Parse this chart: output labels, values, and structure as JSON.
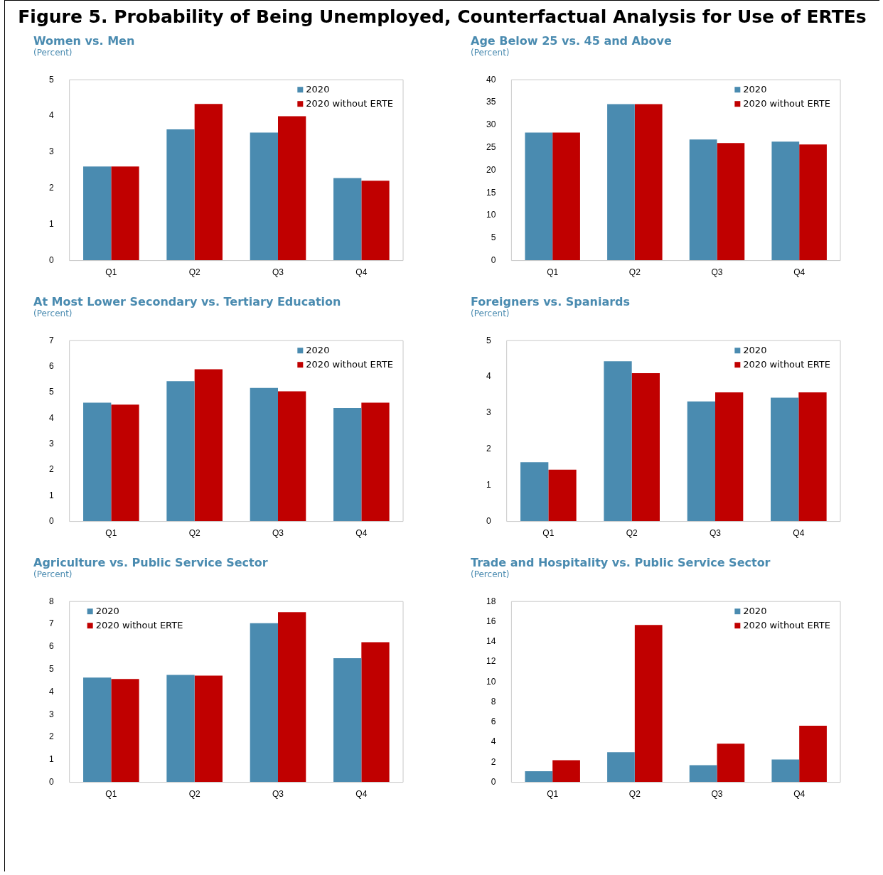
{
  "chart_data": [
    {
      "type": "other",
      "title": "Figure 5. Probability of Being Unemployed, Counterfactual Analysis for Use of ERTEs"
    },
    {
      "type": "bar",
      "title": "Women vs. Men",
      "subtitle": "(Percent)",
      "categories": [
        "Q1",
        "Q2",
        "Q3",
        "Q4"
      ],
      "series": [
        {
          "name": "2020",
          "color": "#4a8bb0",
          "values": [
            2.6,
            3.63,
            3.54,
            2.28
          ]
        },
        {
          "name": "2020 without ERTE",
          "color": "#c00000",
          "values": [
            2.6,
            4.33,
            3.99,
            2.21
          ]
        }
      ],
      "ylim": [
        0,
        5
      ],
      "yticks": [
        0,
        1,
        2,
        3,
        4,
        5
      ],
      "grid": false,
      "legend": "top right"
    },
    {
      "type": "bar",
      "title": "Age Below 25 vs. 45 and Above",
      "subtitle": "(Percent)",
      "categories": [
        "Q1",
        "Q2",
        "Q3",
        "Q4"
      ],
      "series": [
        {
          "name": "2020",
          "color": "#4a8bb0",
          "values": [
            28.3,
            34.6,
            26.8,
            26.3
          ]
        },
        {
          "name": "2020 without ERTE",
          "color": "#c00000",
          "values": [
            28.3,
            34.6,
            26.0,
            25.7
          ]
        }
      ],
      "ylim": [
        0,
        40
      ],
      "yticks": [
        0,
        5,
        10,
        15,
        20,
        25,
        30,
        35,
        40
      ],
      "grid": false,
      "legend": "top right"
    },
    {
      "type": "bar",
      "title": "At Most Lower Secondary vs. Tertiary Education",
      "subtitle": "(Percent)",
      "categories": [
        "Q1",
        "Q2",
        "Q3",
        "Q4"
      ],
      "series": [
        {
          "name": "2020",
          "color": "#4a8bb0",
          "values": [
            4.6,
            5.43,
            5.17,
            4.39
          ]
        },
        {
          "name": "2020 without ERTE",
          "color": "#c00000",
          "values": [
            4.52,
            5.89,
            5.04,
            4.6
          ]
        }
      ],
      "ylim": [
        0,
        7
      ],
      "yticks": [
        0,
        1,
        2,
        3,
        4,
        5,
        6,
        7
      ],
      "grid": false,
      "legend": "top right"
    },
    {
      "type": "bar",
      "title": "Foreigners vs. Spaniards",
      "subtitle": "(Percent)",
      "categories": [
        "Q1",
        "Q2",
        "Q3",
        "Q4"
      ],
      "series": [
        {
          "name": "2020",
          "color": "#4a8bb0",
          "values": [
            1.64,
            4.43,
            3.32,
            3.42
          ]
        },
        {
          "name": "2020 without ERTE",
          "color": "#c00000",
          "values": [
            1.43,
            4.1,
            3.57,
            3.57
          ]
        }
      ],
      "ylim": [
        0,
        5
      ],
      "yticks": [
        0,
        1,
        2,
        3,
        4,
        5
      ],
      "grid": false,
      "legend": "top right"
    },
    {
      "type": "bar",
      "title": "Agriculture vs. Public Service Sector",
      "subtitle": "(Percent)",
      "categories": [
        "Q1",
        "Q2",
        "Q3",
        "Q4"
      ],
      "series": [
        {
          "name": "2020",
          "color": "#4a8bb0",
          "values": [
            4.63,
            4.75,
            7.04,
            5.49
          ]
        },
        {
          "name": "2020 without ERTE",
          "color": "#c00000",
          "values": [
            4.57,
            4.72,
            7.53,
            6.2
          ]
        }
      ],
      "ylim": [
        0,
        8
      ],
      "yticks": [
        0,
        1,
        2,
        3,
        4,
        5,
        6,
        7,
        8
      ],
      "grid": false,
      "legend": "top left"
    },
    {
      "type": "bar",
      "title": "Trade and Hospitality vs. Public Service Sector",
      "subtitle": "(Percent)",
      "categories": [
        "Q1",
        "Q2",
        "Q3",
        "Q4"
      ],
      "series": [
        {
          "name": "2020",
          "color": "#4a8bb0",
          "values": [
            1.1,
            3.0,
            1.7,
            2.27
          ]
        },
        {
          "name": "2020 without ERTE",
          "color": "#c00000",
          "values": [
            2.2,
            15.66,
            3.85,
            5.63
          ]
        }
      ],
      "ylim": [
        0,
        18
      ],
      "yticks": [
        0,
        2,
        4,
        6,
        8,
        10,
        12,
        14,
        16,
        18
      ],
      "grid": false,
      "legend": "top right"
    }
  ]
}
